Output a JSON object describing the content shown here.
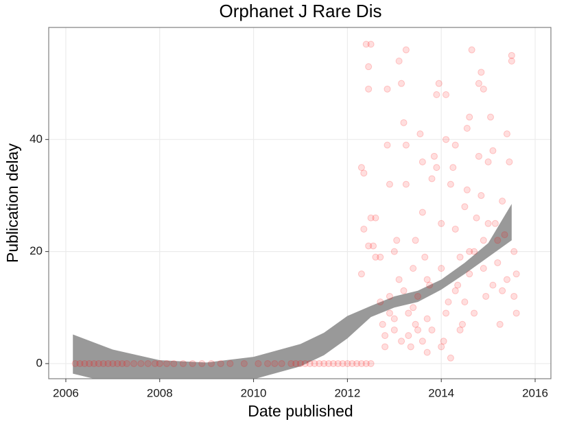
{
  "chart_data": {
    "type": "scatter",
    "title": "Orphanet J Rare Dis",
    "x_label": "Date published",
    "y_label": "Publication delay",
    "xlim": [
      2005.635,
      2016.336
    ],
    "ylim": [
      -2.7,
      60
    ],
    "xticks": [
      2006,
      2008,
      2010,
      2012,
      2014,
      2016
    ],
    "yticks": [
      0,
      20,
      40
    ],
    "grid": true,
    "points": {
      "color": "#ff0000",
      "x": [
        2006.2,
        2006.3,
        2006.4,
        2006.5,
        2006.6,
        2006.7,
        2006.8,
        2006.9,
        2007.0,
        2007.1,
        2007.2,
        2007.3,
        2007.45,
        2007.6,
        2007.75,
        2007.9,
        2008.0,
        2008.15,
        2008.3,
        2008.5,
        2008.7,
        2008.9,
        2009.1,
        2009.3,
        2009.5,
        2009.8,
        2010.1,
        2010.3,
        2010.45,
        2010.6,
        2010.8,
        2010.9,
        2011.0,
        2011.1,
        2011.2,
        2011.3,
        2011.4,
        2011.5,
        2011.6,
        2011.7,
        2011.8,
        2011.9,
        2012.0,
        2012.1,
        2012.2,
        2012.3,
        2012.4,
        2012.5,
        2012.3,
        2012.35,
        2012.4,
        2012.45,
        2012.45,
        2012.5,
        2012.3,
        2012.35,
        2012.45,
        2012.5,
        2012.55,
        2012.6,
        2012.6,
        2012.7,
        2012.7,
        2012.75,
        2012.8,
        2012.8,
        2012.85,
        2012.85,
        2012.9,
        2012.9,
        2013.0,
        2013.0,
        2013.05,
        2013.1,
        2013.1,
        2013.15,
        2013.2,
        2013.25,
        2013.25,
        2013.25,
        2013.3,
        2013.3,
        2013.35,
        2013.4,
        2013.45,
        2013.5,
        2013.5,
        2013.55,
        2013.6,
        2013.6,
        2013.65,
        2013.7,
        2013.7,
        2013.75,
        2013.8,
        2013.85,
        2013.9,
        2013.9,
        2013.95,
        2014.0,
        2014.0,
        2014.05,
        2014.1,
        2014.1,
        2014.15,
        2014.2,
        2014.25,
        2014.3,
        2014.3,
        2014.35,
        2014.4,
        2014.45,
        2014.5,
        2014.55,
        2014.55,
        2014.6,
        2014.6,
        2014.65,
        2014.7,
        2014.75,
        2014.8,
        2014.8,
        2014.85,
        2014.85,
        2014.9,
        2014.9,
        2014.95,
        2015.0,
        2015.05,
        2015.1,
        2015.15,
        2015.2,
        2015.25,
        2015.3,
        2015.35,
        2015.4,
        2015.45,
        2015.5,
        2015.5,
        2015.55,
        2015.55,
        2015.6,
        2015.6,
        2013.4,
        2013.6,
        2013.8,
        2014.1,
        2014.3,
        2014.5,
        2014.7,
        2014.9,
        2015.1,
        2015.3,
        2013.0,
        2013.2,
        2012.9,
        2013.15,
        2013.45,
        2013.7,
        2014.0,
        2014.2,
        2014.4,
        2014.6,
        2015.0,
        2015.2,
        2015.4
      ],
      "y": [
        0,
        0,
        0,
        0,
        0,
        0,
        0,
        0,
        0,
        0,
        0,
        0,
        0,
        0,
        0,
        0,
        0,
        0,
        0,
        0,
        0,
        0,
        0,
        0,
        0,
        0,
        0,
        0,
        0,
        0,
        0,
        0,
        0,
        0,
        0,
        0,
        0,
        0,
        0,
        0,
        0,
        0,
        0,
        0,
        0,
        0,
        0,
        0,
        35,
        34,
        57,
        53,
        49,
        57,
        16,
        24,
        21,
        26,
        21,
        26,
        19,
        19,
        11,
        7,
        5,
        3,
        39,
        49,
        32,
        12,
        8,
        20,
        22,
        54,
        15,
        50,
        43,
        56,
        39,
        32,
        9,
        5,
        3,
        17,
        22,
        12,
        6,
        41,
        36,
        27,
        19,
        2,
        8,
        14,
        33,
        37,
        48,
        35,
        50,
        25,
        17,
        4,
        40,
        48,
        11,
        32,
        35,
        39,
        24,
        14,
        19,
        7,
        28,
        31,
        42,
        44,
        16,
        56,
        20,
        26,
        37,
        50,
        52,
        30,
        49,
        22,
        12,
        36,
        44,
        38,
        25,
        18,
        7,
        29,
        23,
        41,
        36,
        54,
        55,
        20,
        12,
        16,
        9,
        10,
        4,
        6,
        9,
        13,
        11,
        9,
        17,
        14,
        13,
        6,
        13,
        9,
        4,
        7,
        15,
        3,
        1,
        6,
        20,
        25,
        22,
        15
      ]
    },
    "band": {
      "color": "#999999",
      "x": [
        2006.15,
        2007,
        2008,
        2009,
        2010,
        2011,
        2011.5,
        2012,
        2012.5,
        2013,
        2013.5,
        2014,
        2014.5,
        2015,
        2015.5
      ],
      "upper": [
        5.2,
        2.5,
        0.6,
        0.2,
        1.2,
        3.5,
        5.5,
        8.5,
        10.3,
        12,
        13,
        15,
        18,
        21.5,
        28.5
      ],
      "lower": [
        -1.8,
        -3.5,
        -3.5,
        -3.8,
        -2.8,
        -0.5,
        1.5,
        4.5,
        8.3,
        10,
        11,
        13.2,
        16,
        19,
        22
      ]
    }
  }
}
